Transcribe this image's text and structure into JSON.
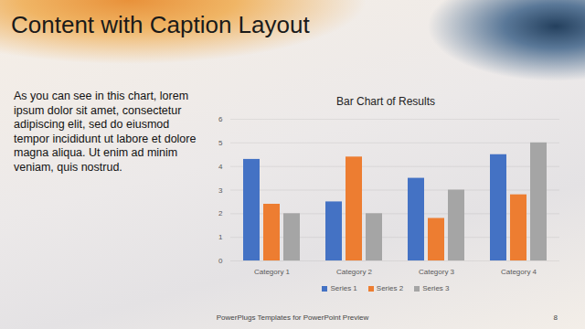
{
  "title": "Content with Caption Layout",
  "caption": "As you can see in this chart, lorem ipsum dolor sit amet, consectetur adipiscing elit, sed do eiusmod tempor incididunt ut labore et dolore magna aliqua. Ut enim ad minim veniam, quis nostrud.",
  "footer": "PowerPlugs Templates for PowerPoint Preview",
  "page_number": 8,
  "chart_data": {
    "type": "bar",
    "title": "Bar Chart of Results",
    "categories": [
      "Category 1",
      "Category 2",
      "Category 3",
      "Category 4"
    ],
    "series": [
      {
        "name": "Series 1",
        "color": "#4472c4",
        "values": [
          4.3,
          2.5,
          3.5,
          4.5
        ]
      },
      {
        "name": "Series 2",
        "color": "#ed7d31",
        "values": [
          2.4,
          4.4,
          1.8,
          2.8
        ]
      },
      {
        "name": "Series 3",
        "color": "#a5a5a5",
        "values": [
          2,
          2,
          3,
          5
        ]
      }
    ],
    "ylim": [
      0,
      6
    ],
    "yticks": [
      0,
      1,
      2,
      3,
      4,
      5,
      6
    ],
    "grid": true,
    "legend": "bottom"
  }
}
